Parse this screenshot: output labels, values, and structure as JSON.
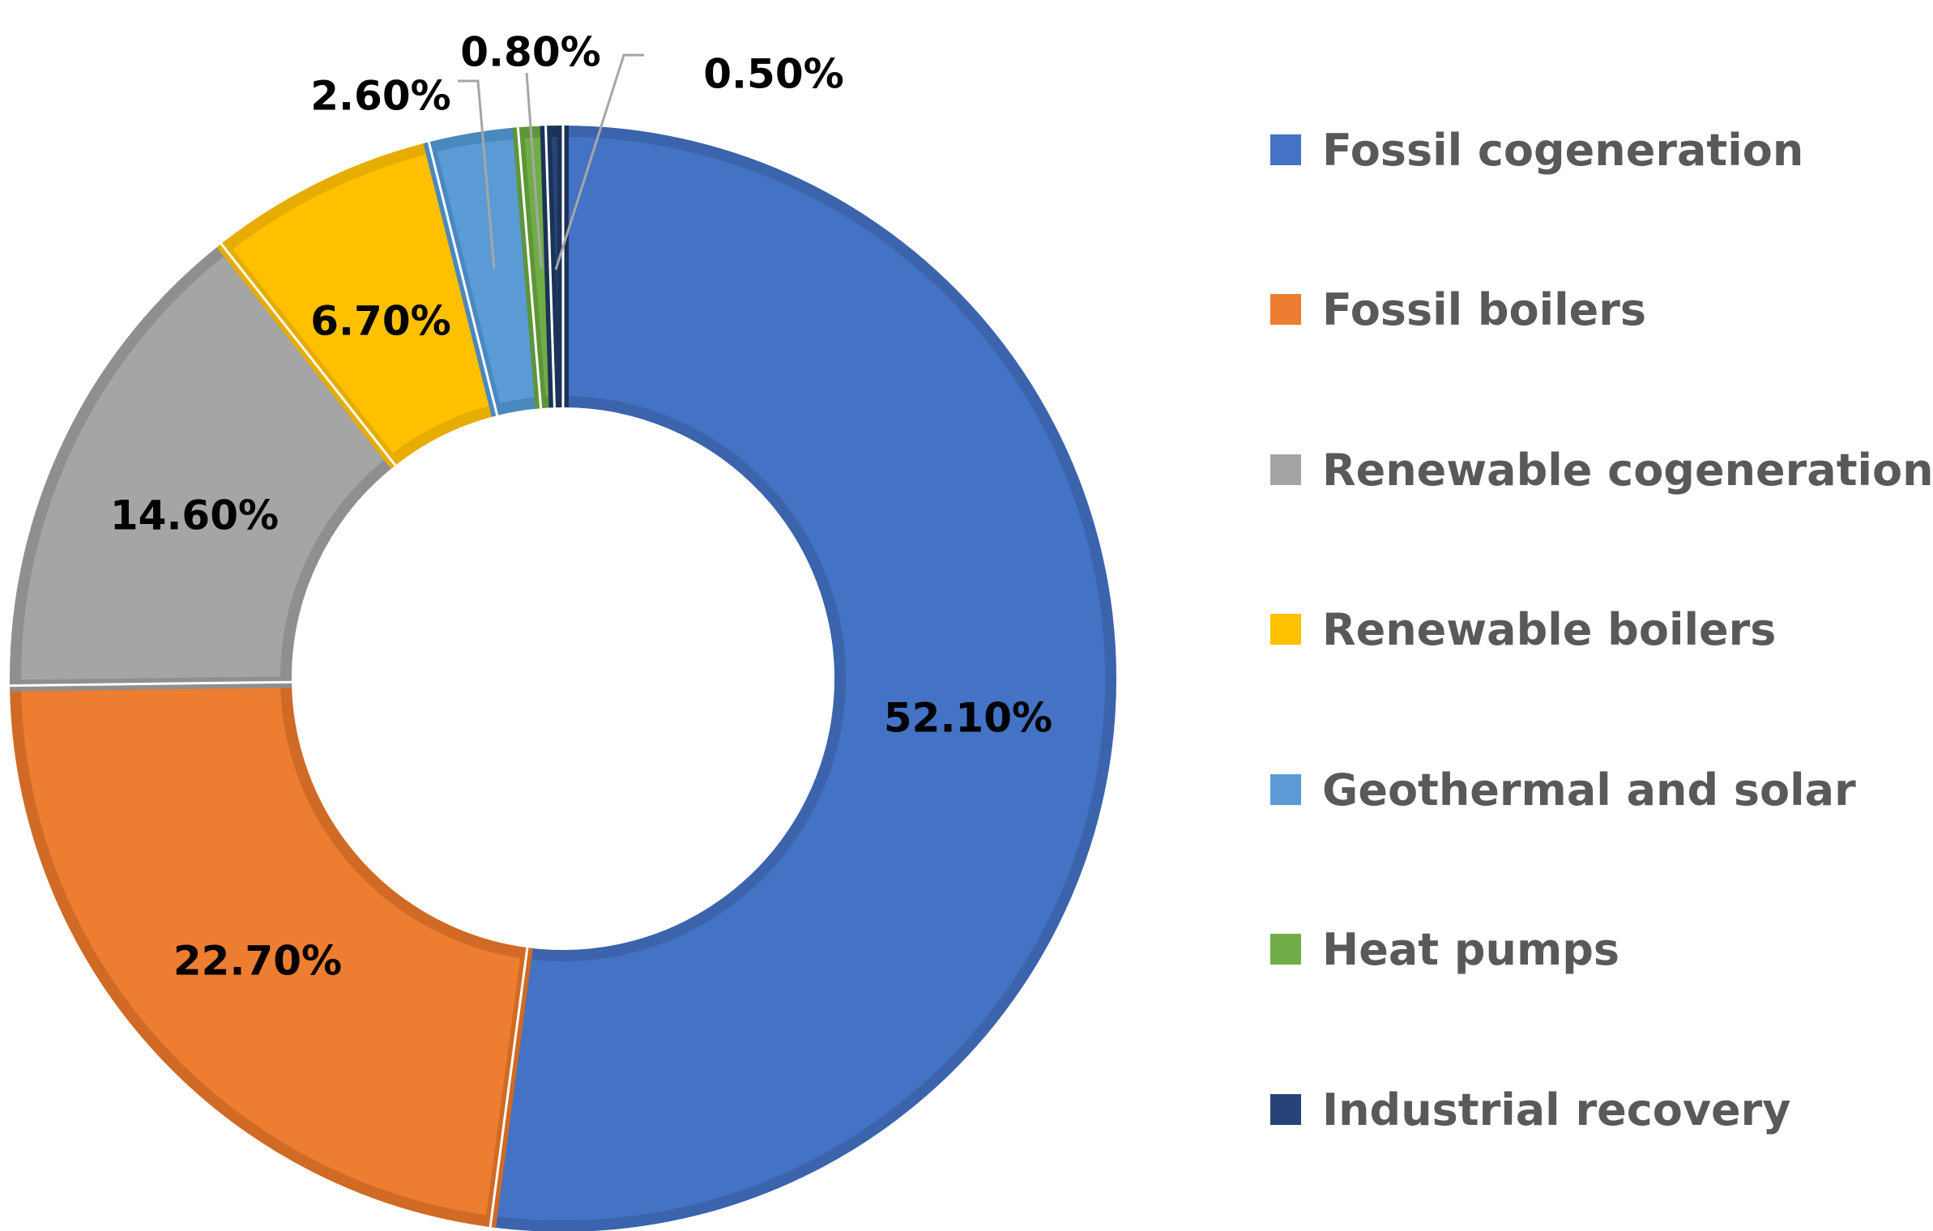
{
  "chart_data": {
    "type": "pie",
    "donut": true,
    "title": "",
    "legend_position": "right",
    "value_unit": "%",
    "categories": [
      "Fossil cogeneration",
      "Fossil boilers",
      "Renewable cogeneration",
      "Renewable boilers",
      "Geothermal and solar",
      "Heat pumps",
      "Industrial recovery"
    ],
    "values": [
      52.1,
      22.7,
      14.6,
      6.7,
      2.6,
      0.8,
      0.5
    ],
    "labels": [
      "52.10%",
      "22.70%",
      "14.60%",
      "6.70%",
      "2.60%",
      "0.80%",
      "0.50%"
    ],
    "colors": [
      "#4472C4",
      "#ED7D31",
      "#A5A5A5",
      "#FFC000",
      "#5B9BD5",
      "#70AD47",
      "#264478"
    ],
    "border_colors": [
      "#3B64AD",
      "#D06A25",
      "#8F8F8F",
      "#E6AC00",
      "#4A88C0",
      "#5E9538",
      "#1B3358"
    ]
  }
}
